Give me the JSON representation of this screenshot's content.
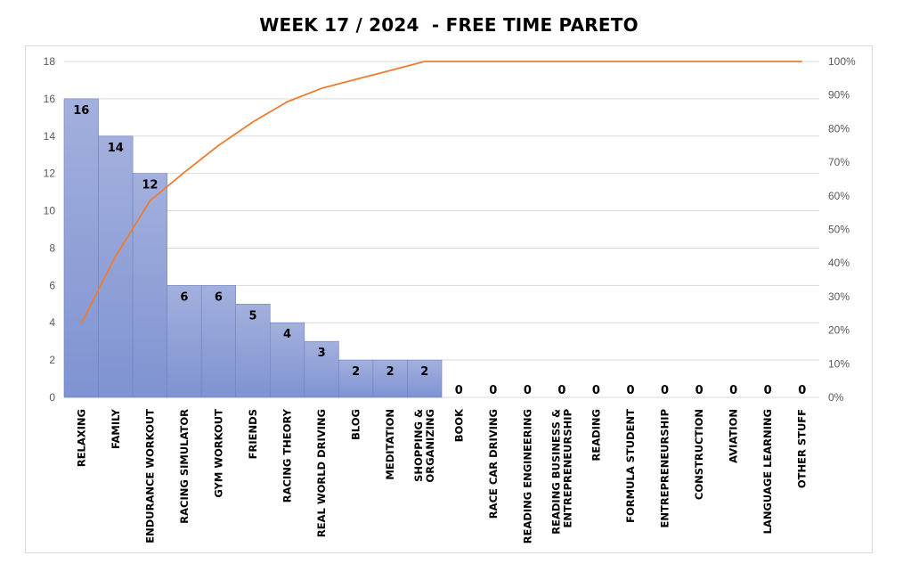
{
  "chart_data": {
    "type": "bar",
    "title": "WEEK 17 / 2024  - FREE TIME PARETO",
    "categories": [
      [
        "RELAXING"
      ],
      [
        "FAMILY"
      ],
      [
        "ENDURANCE WORKOUT"
      ],
      [
        "RACING SIMULATOR"
      ],
      [
        "GYM WORKOUT"
      ],
      [
        "FRIENDS"
      ],
      [
        "RACING THEORY"
      ],
      [
        "REAL WORLD DRIVING"
      ],
      [
        "BLOG"
      ],
      [
        "MEDITATION"
      ],
      [
        "SHOPPING &",
        "ORGANIZING"
      ],
      [
        "BOOK"
      ],
      [
        "RACE CAR DRIVING"
      ],
      [
        "READING ENGINEERING"
      ],
      [
        "READING BUSINESS &",
        "ENTREPRENEURSHIP"
      ],
      [
        "READING"
      ],
      [
        "FORMULA STUDENT"
      ],
      [
        "ENTREPRENEURSHIP"
      ],
      [
        "CONSTRUCTION"
      ],
      [
        "AVIATION"
      ],
      [
        "LANGUAGE LEARNING"
      ],
      [
        "OTHER STUFF"
      ]
    ],
    "values": [
      16,
      14,
      12,
      6,
      6,
      5,
      4,
      3,
      2,
      2,
      2,
      0,
      0,
      0,
      0,
      0,
      0,
      0,
      0,
      0,
      0,
      0
    ],
    "cumulative_percent": [
      22,
      42,
      58.5,
      67,
      75,
      82,
      88,
      92,
      94.7,
      97.3,
      100,
      100,
      100,
      100,
      100,
      100,
      100,
      100,
      100,
      100,
      100,
      100
    ],
    "ylim": [
      0,
      18
    ],
    "yticks": [
      0,
      2,
      4,
      6,
      8,
      10,
      12,
      14,
      16,
      18
    ],
    "y2lim": [
      0,
      100
    ],
    "y2ticks": [
      "0%",
      "10%",
      "20%",
      "30%",
      "40%",
      "50%",
      "60%",
      "70%",
      "80%",
      "90%",
      "100%"
    ],
    "grid": true,
    "legend": "none",
    "colors": {
      "bar_top": "#a3b0dd",
      "bar_bottom": "#7f93d2",
      "bar_edge": "#6f83c4",
      "line": "#ed7d31",
      "grid": "#d9d9d9"
    }
  }
}
